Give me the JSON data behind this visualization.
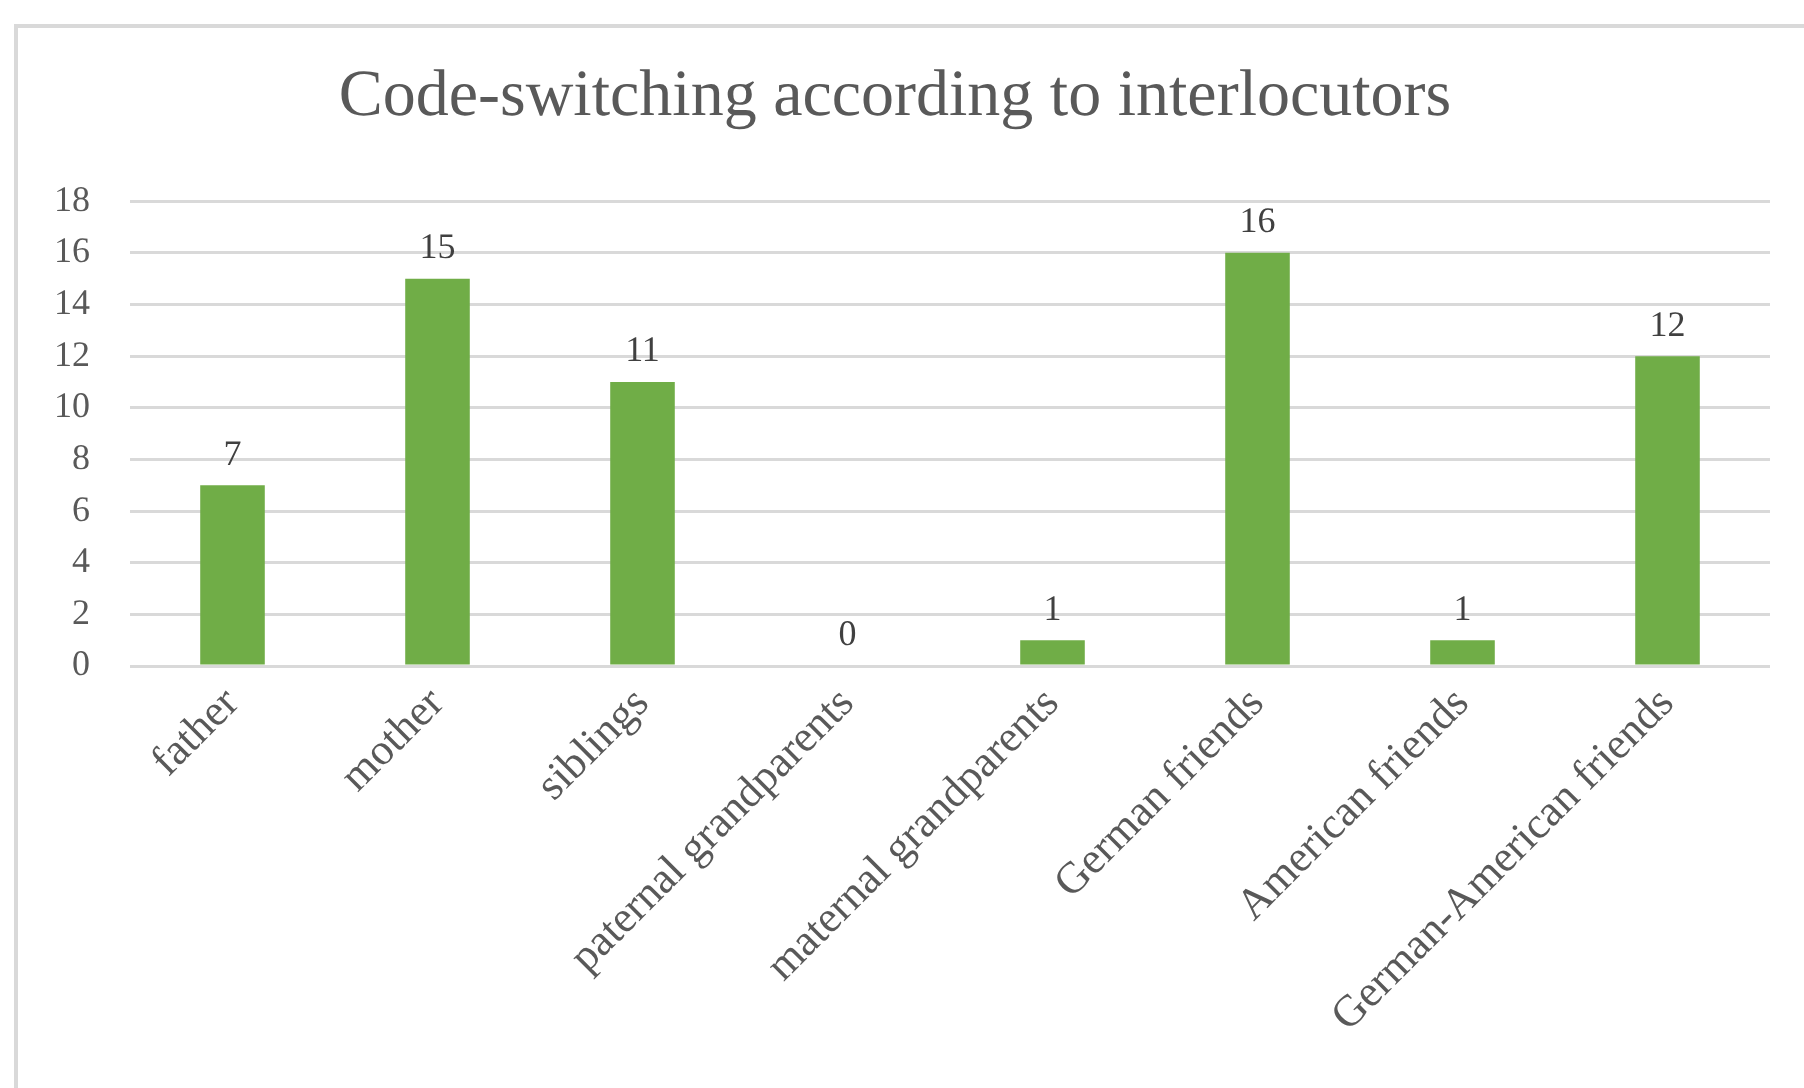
{
  "chart_data": {
    "type": "bar",
    "title": "Code-switching according to interlocutors",
    "categories": [
      "father",
      "mother",
      "siblings",
      "paternal grandparents",
      "maternal grandparents",
      "German friends",
      "American friends",
      "German-American friends"
    ],
    "values": [
      7,
      15,
      11,
      0,
      1,
      16,
      1,
      12
    ],
    "color": "#70ad47",
    "ylim": [
      0,
      18
    ],
    "yticks": [
      0,
      2,
      4,
      6,
      8,
      10,
      12,
      14,
      16,
      18
    ],
    "grid": "y",
    "data_labels": true
  }
}
